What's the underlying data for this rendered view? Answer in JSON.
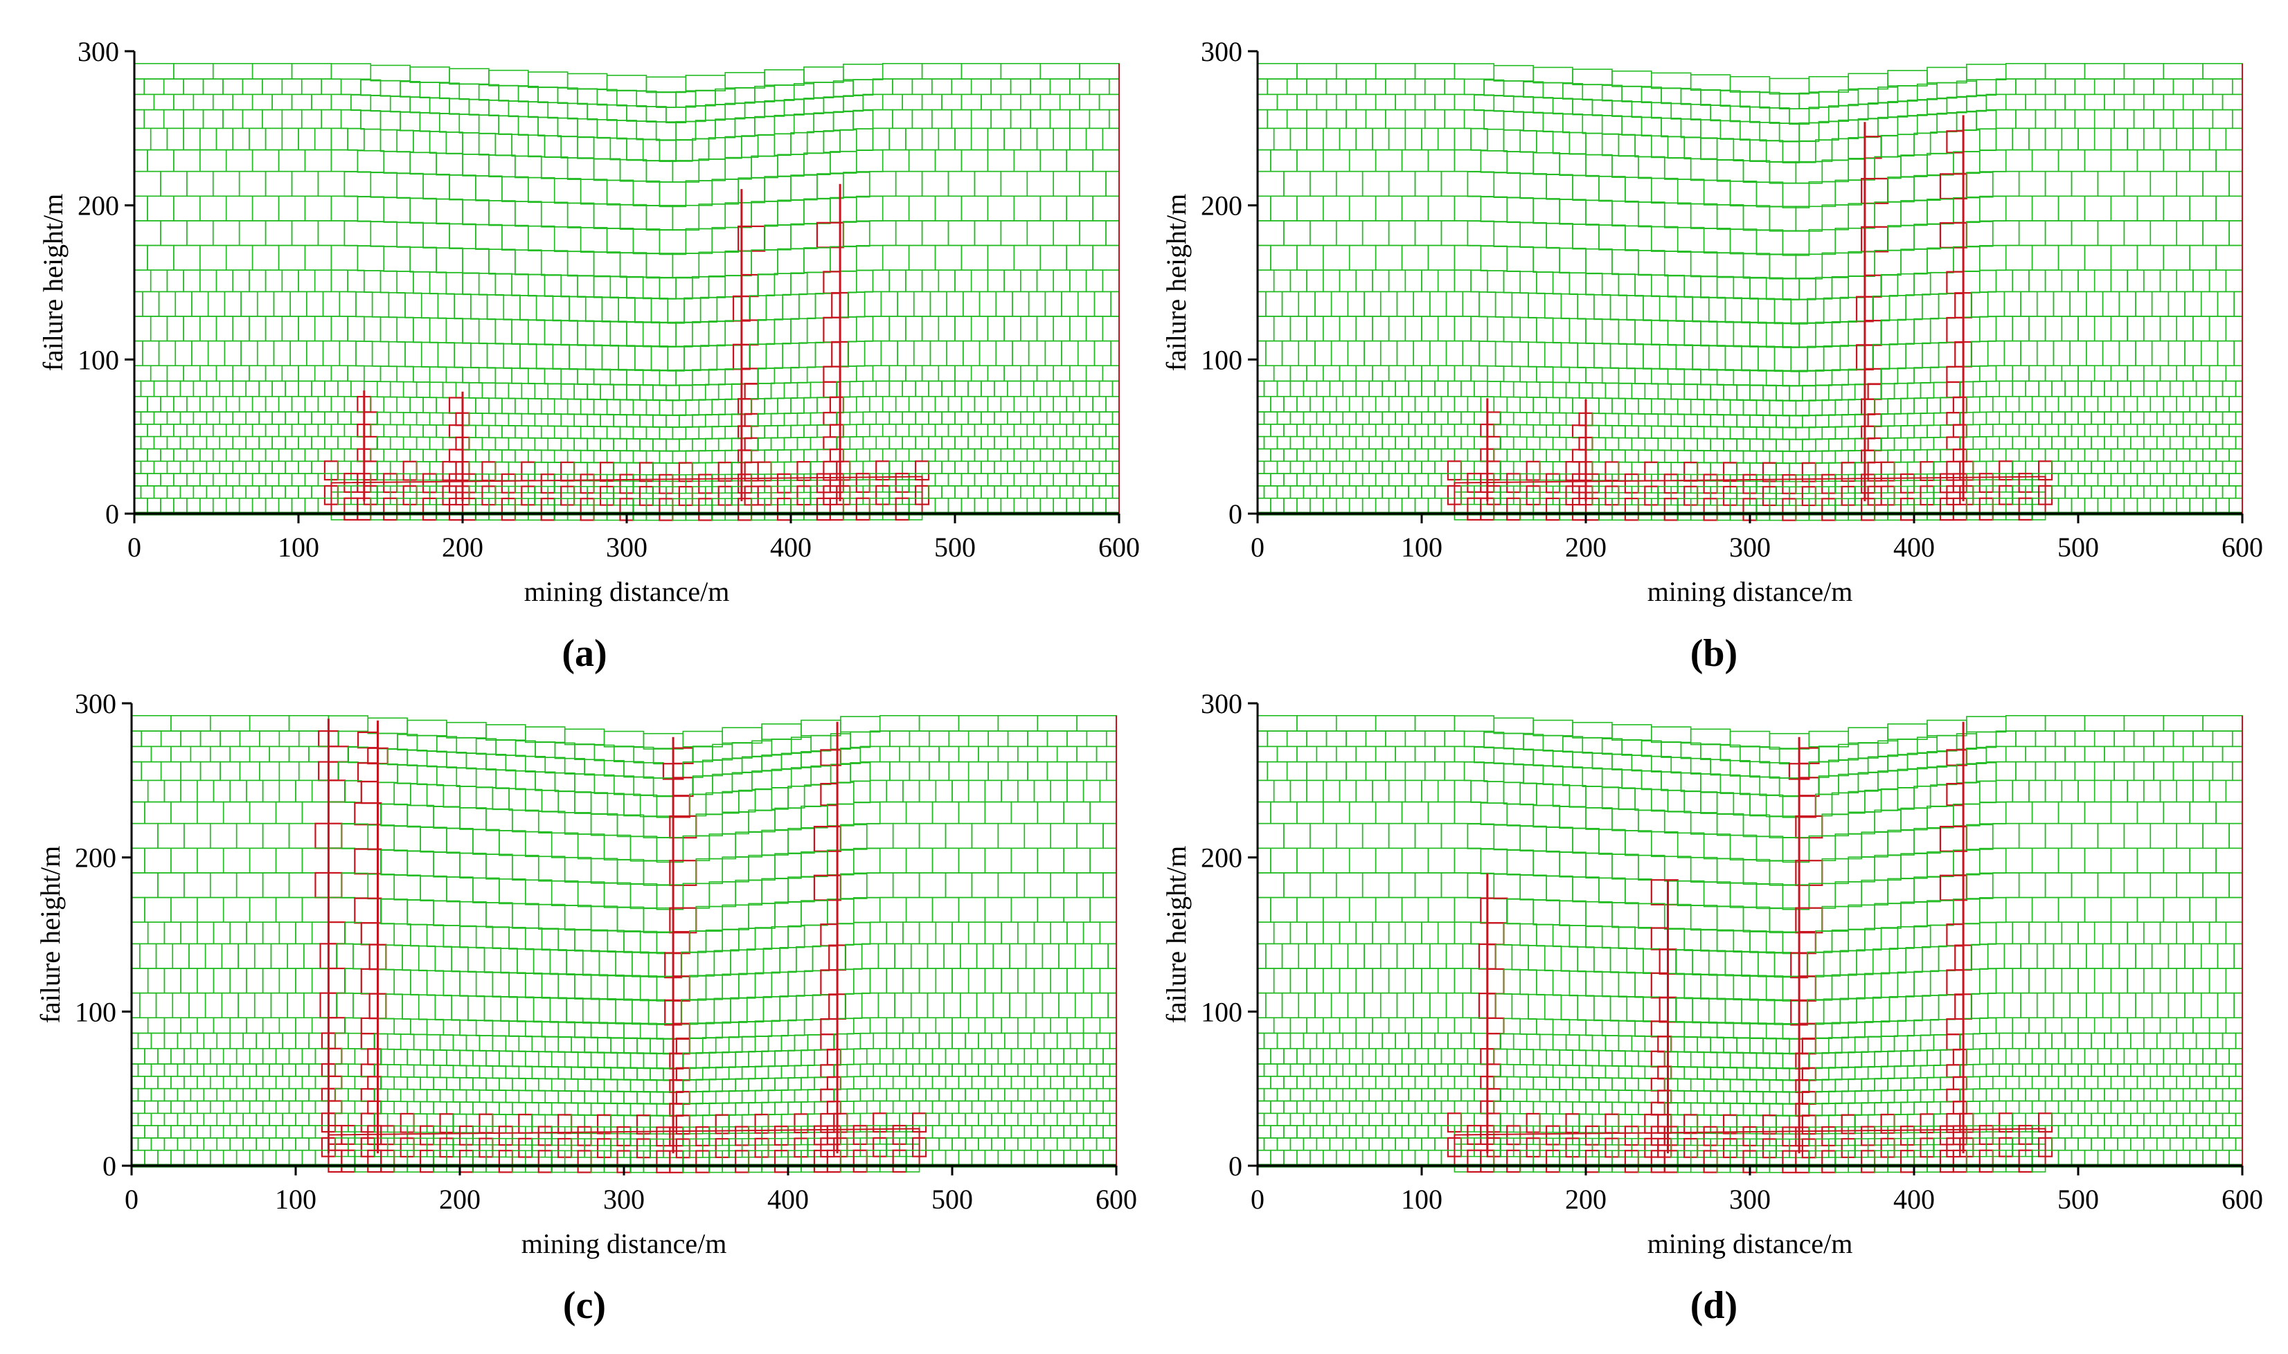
{
  "figure": {
    "colors": {
      "block": "#22bb22",
      "failure": "#c8141e",
      "axis": "#000000",
      "floor": "#006400"
    },
    "panels": [
      {
        "label": "a",
        "fracture_zones": [
          {
            "x0": 370,
            "x1": 430,
            "top": 215
          },
          {
            "x0": 140,
            "x1": 200,
            "top": 80
          }
        ],
        "caved_zone": [
          120,
          480
        ]
      },
      {
        "label": "b",
        "fracture_zones": [
          {
            "x0": 370,
            "x1": 430,
            "top": 260
          },
          {
            "x0": 140,
            "x1": 200,
            "top": 75
          }
        ],
        "caved_zone": [
          120,
          480
        ]
      },
      {
        "label": "c",
        "fracture_zones": [
          {
            "x0": 330,
            "x1": 430,
            "top": 290
          },
          {
            "x0": 120,
            "x1": 150,
            "top": 290
          }
        ],
        "caved_zone": [
          120,
          480
        ]
      },
      {
        "label": "d",
        "fracture_zones": [
          {
            "x0": 330,
            "x1": 430,
            "top": 290
          },
          {
            "x0": 140,
            "x1": 250,
            "top": 190
          }
        ],
        "caved_zone": [
          120,
          480
        ]
      }
    ]
  },
  "chart_data": [
    {
      "type": "other",
      "title": "(a)",
      "xlabel": "mining distance/m",
      "ylabel": "failure height/m",
      "xlim": [
        0,
        600
      ],
      "ylim": [
        0,
        300
      ],
      "xticks": [
        "0",
        "100",
        "200",
        "300",
        "400",
        "500",
        "600"
      ],
      "yticks": [
        "0",
        "100",
        "200",
        "300"
      ],
      "surface_subsidence": {
        "x": [
          0,
          130,
          330,
          450,
          600
        ],
        "y": [
          292,
          292,
          283,
          292,
          292
        ]
      },
      "goaf_extent": [
        120,
        480
      ]
    },
    {
      "type": "other",
      "title": "(b)",
      "xlabel": "mining distance/m",
      "ylabel": "failure height/m",
      "xlim": [
        0,
        600
      ],
      "ylim": [
        0,
        300
      ],
      "xticks": [
        "0",
        "100",
        "200",
        "300",
        "400",
        "500",
        "600"
      ],
      "yticks": [
        "0",
        "100",
        "200",
        "300"
      ],
      "surface_subsidence": {
        "x": [
          0,
          130,
          330,
          450,
          600
        ],
        "y": [
          292,
          292,
          282,
          292,
          292
        ]
      },
      "goaf_extent": [
        120,
        480
      ]
    },
    {
      "type": "other",
      "title": "(c)",
      "xlabel": "mining distance/m",
      "ylabel": "failure height/m",
      "xlim": [
        0,
        600
      ],
      "ylim": [
        0,
        300
      ],
      "xticks": [
        "0",
        "100",
        "200",
        "300",
        "400",
        "500",
        "600"
      ],
      "yticks": [
        "0",
        "100",
        "200",
        "300"
      ],
      "surface_subsidence": {
        "x": [
          0,
          130,
          330,
          450,
          600
        ],
        "y": [
          292,
          292,
          280,
          292,
          292
        ]
      },
      "goaf_extent": [
        120,
        480
      ]
    },
    {
      "type": "other",
      "title": "(d)",
      "xlabel": "mining distance/m",
      "ylabel": "failure height/m",
      "xlim": [
        0,
        600
      ],
      "ylim": [
        0,
        300
      ],
      "xticks": [
        "0",
        "100",
        "200",
        "300",
        "400",
        "500",
        "600"
      ],
      "yticks": [
        "0",
        "100",
        "200",
        "300"
      ],
      "surface_subsidence": {
        "x": [
          0,
          130,
          330,
          450,
          600
        ],
        "y": [
          292,
          292,
          280,
          292,
          292
        ]
      },
      "goaf_extent": [
        120,
        480
      ]
    }
  ]
}
